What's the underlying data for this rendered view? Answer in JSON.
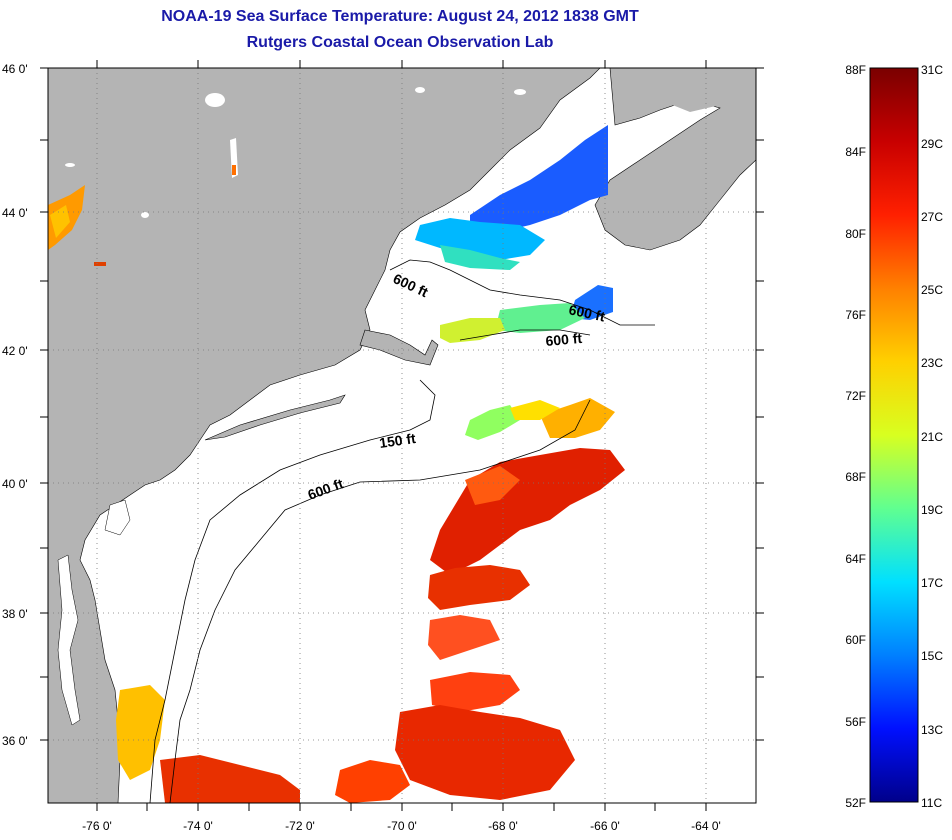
{
  "header": {
    "title": "NOAA-19 Sea Surface Temperature:  August 24, 2012 1838 GMT",
    "subtitle": "Rutgers Coastal Ocean Observation Lab"
  },
  "map": {
    "lat_labels": [
      "46 0'",
      "44 0'",
      "42 0'",
      "40 0'",
      "38 0'",
      "36 0'"
    ],
    "lon_labels": [
      "-76 0'",
      "-74 0'",
      "-72 0'",
      "-70 0'",
      "-68 0'",
      "-66 0'",
      "-64 0'"
    ],
    "contour_labels": [
      "600 ft",
      "600 ft",
      "600 ft",
      "150 ft",
      "600 ft"
    ],
    "colors": {
      "land": "#b4b4b4",
      "ocean": "#ffffff",
      "grid": "#888888"
    }
  },
  "colorbar": {
    "f_labels": [
      "88F",
      "84F",
      "80F",
      "76F",
      "72F",
      "68F",
      "64F",
      "60F",
      "56F",
      "52F"
    ],
    "c_labels": [
      "31C",
      "29C",
      "27C",
      "25C",
      "23C",
      "21C",
      "19C",
      "17C",
      "15C",
      "13C",
      "11C"
    ],
    "colors_top_to_bottom": [
      "#7a0000",
      "#c80000",
      "#ff2000",
      "#ff8000",
      "#ffd000",
      "#d8ff20",
      "#60ff90",
      "#00e0ff",
      "#0080ff",
      "#0010ff",
      "#00008a"
    ]
  }
}
